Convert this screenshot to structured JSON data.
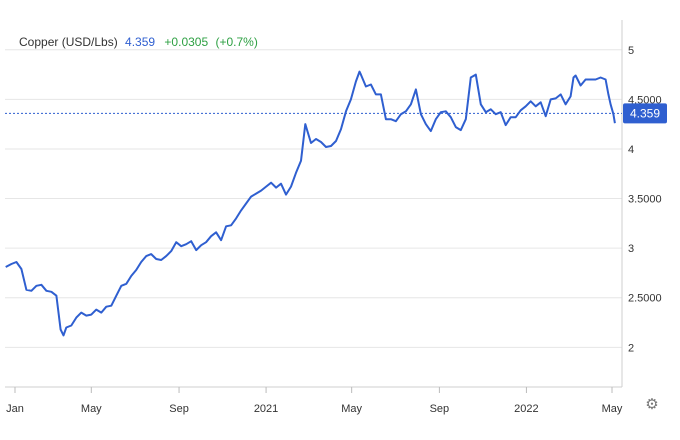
{
  "header": {
    "instrument": "Copper (USD/Lbs)",
    "price": "4.359",
    "change": "+0.0305",
    "change_pct": "(+0.7%)"
  },
  "price_badge": "4.359",
  "colors": {
    "line": "#2f5fd0",
    "badge": "#2f5fd0",
    "grid": "#e6e6e6",
    "change_positive": "#2ea043"
  },
  "icons": {
    "settings": "gear-icon"
  },
  "chart_data": {
    "type": "line",
    "title": "Copper (USD/Lbs)",
    "xlabel": "",
    "ylabel": "",
    "ylim": [
      1.6,
      5.3
    ],
    "xlim": [
      "2020-01-01",
      "2022-05-15"
    ],
    "y_ticks": [
      2,
      2.5,
      3,
      3.5,
      4,
      4.5,
      5
    ],
    "y_tick_labels": [
      "2",
      "2.5000",
      "3",
      "3.5000",
      "4",
      "4.5000",
      "5"
    ],
    "x_ticks": [
      "2020-01-15",
      "2020-05-01",
      "2020-09-01",
      "2021-01-01",
      "2021-05-01",
      "2021-09-01",
      "2022-01-01",
      "2022-05-01"
    ],
    "x_tick_labels": [
      "Jan",
      "May",
      "Sep",
      "2021",
      "May",
      "Sep",
      "2022",
      "May"
    ],
    "grid": true,
    "reference_line": 4.359,
    "series": [
      {
        "x": [
          "2020-01-02",
          "2020-01-10",
          "2020-01-17",
          "2020-01-24",
          "2020-01-31",
          "2020-02-07",
          "2020-02-14",
          "2020-02-21",
          "2020-02-28",
          "2020-03-06",
          "2020-03-13",
          "2020-03-19",
          "2020-03-23",
          "2020-03-27",
          "2020-04-03",
          "2020-04-10",
          "2020-04-17",
          "2020-04-24",
          "2020-05-01",
          "2020-05-08",
          "2020-05-15",
          "2020-05-22",
          "2020-05-29",
          "2020-06-05",
          "2020-06-12",
          "2020-06-19",
          "2020-06-26",
          "2020-07-03",
          "2020-07-10",
          "2020-07-17",
          "2020-07-24",
          "2020-07-31",
          "2020-08-07",
          "2020-08-14",
          "2020-08-21",
          "2020-08-28",
          "2020-09-04",
          "2020-09-11",
          "2020-09-18",
          "2020-09-25",
          "2020-10-02",
          "2020-10-09",
          "2020-10-16",
          "2020-10-23",
          "2020-10-30",
          "2020-11-06",
          "2020-11-13",
          "2020-11-20",
          "2020-11-27",
          "2020-12-04",
          "2020-12-11",
          "2020-12-18",
          "2020-12-25",
          "2021-01-01",
          "2021-01-08",
          "2021-01-15",
          "2021-01-22",
          "2021-01-29",
          "2021-02-05",
          "2021-02-12",
          "2021-02-19",
          "2021-02-25",
          "2021-03-05",
          "2021-03-12",
          "2021-03-19",
          "2021-03-26",
          "2021-04-02",
          "2021-04-09",
          "2021-04-16",
          "2021-04-23",
          "2021-04-30",
          "2021-05-07",
          "2021-05-12",
          "2021-05-14",
          "2021-05-21",
          "2021-05-28",
          "2021-06-04",
          "2021-06-11",
          "2021-06-18",
          "2021-06-25",
          "2021-07-02",
          "2021-07-09",
          "2021-07-16",
          "2021-07-23",
          "2021-07-30",
          "2021-08-06",
          "2021-08-13",
          "2021-08-20",
          "2021-08-27",
          "2021-09-03",
          "2021-09-10",
          "2021-09-17",
          "2021-09-24",
          "2021-10-01",
          "2021-10-08",
          "2021-10-15",
          "2021-10-22",
          "2021-10-29",
          "2021-11-05",
          "2021-11-12",
          "2021-11-19",
          "2021-11-26",
          "2021-12-03",
          "2021-12-10",
          "2021-12-17",
          "2021-12-24",
          "2021-12-31",
          "2022-01-07",
          "2022-01-14",
          "2022-01-21",
          "2022-01-28",
          "2022-02-04",
          "2022-02-11",
          "2022-02-18",
          "2022-02-25",
          "2022-03-04",
          "2022-03-08",
          "2022-03-11",
          "2022-03-18",
          "2022-03-25",
          "2022-04-01",
          "2022-04-08",
          "2022-04-15",
          "2022-04-22",
          "2022-04-26",
          "2022-04-29",
          "2022-05-03",
          "2022-05-05"
        ],
        "y": [
          2.81,
          2.84,
          2.86,
          2.79,
          2.58,
          2.57,
          2.62,
          2.63,
          2.57,
          2.56,
          2.52,
          2.18,
          2.12,
          2.2,
          2.22,
          2.3,
          2.35,
          2.32,
          2.33,
          2.38,
          2.35,
          2.41,
          2.42,
          2.52,
          2.62,
          2.64,
          2.72,
          2.78,
          2.86,
          2.92,
          2.94,
          2.89,
          2.88,
          2.92,
          2.97,
          3.06,
          3.02,
          3.04,
          3.07,
          2.98,
          3.03,
          3.06,
          3.12,
          3.16,
          3.08,
          3.22,
          3.23,
          3.3,
          3.38,
          3.45,
          3.52,
          3.55,
          3.58,
          3.62,
          3.66,
          3.61,
          3.65,
          3.54,
          3.62,
          3.76,
          3.88,
          4.25,
          4.06,
          4.1,
          4.07,
          4.02,
          4.03,
          4.08,
          4.2,
          4.38,
          4.5,
          4.68,
          4.78,
          4.75,
          4.63,
          4.65,
          4.55,
          4.55,
          4.3,
          4.3,
          4.28,
          4.35,
          4.38,
          4.45,
          4.6,
          4.35,
          4.25,
          4.18,
          4.3,
          4.37,
          4.38,
          4.32,
          4.22,
          4.19,
          4.3,
          4.72,
          4.75,
          4.45,
          4.37,
          4.4,
          4.35,
          4.37,
          4.24,
          4.32,
          4.32,
          4.39,
          4.43,
          4.48,
          4.43,
          4.47,
          4.33,
          4.5,
          4.51,
          4.55,
          4.45,
          4.53,
          4.72,
          4.74,
          4.64,
          4.7,
          4.7,
          4.7,
          4.72,
          4.7,
          4.55,
          4.45,
          4.35,
          4.26
        ]
      }
    ]
  }
}
